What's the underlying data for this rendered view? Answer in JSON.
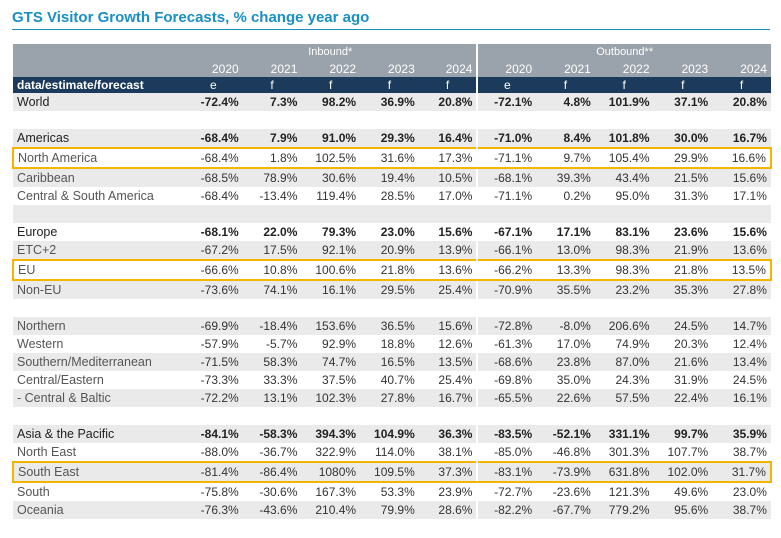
{
  "title": "GTS Visitor Growth Forecasts, % change year ago",
  "header": {
    "inbound": "Inbound*",
    "outbound": "Outbound**",
    "years": [
      "2020",
      "2021",
      "2022",
      "2023",
      "2024",
      "2020",
      "2021",
      "2022",
      "2023",
      "2024"
    ],
    "code_label": "data/estimate/forecast",
    "codes": [
      "e",
      "f",
      "f",
      "f",
      "f",
      "e",
      "f",
      "f",
      "f",
      "f"
    ]
  },
  "rows": [
    {
      "label": "World",
      "bold": true,
      "values": [
        "-72.4%",
        "7.3%",
        "98.2%",
        "36.9%",
        "20.8%",
        "-72.1%",
        "4.8%",
        "101.9%",
        "37.1%",
        "20.8%"
      ]
    },
    {
      "blank": true
    },
    {
      "label": "Americas",
      "bold": true,
      "values": [
        "-68.4%",
        "7.9%",
        "91.0%",
        "29.3%",
        "16.4%",
        "-71.0%",
        "8.4%",
        "101.8%",
        "30.0%",
        "16.7%"
      ]
    },
    {
      "label": "North America",
      "highlight": true,
      "values": [
        "-68.4%",
        "1.8%",
        "102.5%",
        "31.6%",
        "17.3%",
        "-71.1%",
        "9.7%",
        "105.4%",
        "29.9%",
        "16.6%"
      ]
    },
    {
      "label": "Caribbean",
      "values": [
        "-68.5%",
        "78.9%",
        "30.6%",
        "19.4%",
        "10.5%",
        "-68.1%",
        "39.3%",
        "43.4%",
        "21.5%",
        "15.6%"
      ]
    },
    {
      "label": "Central & South America",
      "values": [
        "-68.4%",
        "-13.4%",
        "119.4%",
        "28.5%",
        "17.0%",
        "-71.1%",
        "0.2%",
        "95.0%",
        "31.3%",
        "17.1%"
      ]
    },
    {
      "blank": true
    },
    {
      "label": "Europe",
      "bold": true,
      "values": [
        "-68.1%",
        "22.0%",
        "79.3%",
        "23.0%",
        "15.6%",
        "-67.1%",
        "17.1%",
        "83.1%",
        "23.6%",
        "15.6%"
      ]
    },
    {
      "label": "ETC+2",
      "values": [
        "-67.2%",
        "17.5%",
        "92.1%",
        "20.9%",
        "13.9%",
        "-66.1%",
        "13.0%",
        "98.3%",
        "21.9%",
        "13.6%"
      ]
    },
    {
      "label": "EU",
      "highlight": true,
      "values": [
        "-66.6%",
        "10.8%",
        "100.6%",
        "21.8%",
        "13.6%",
        "-66.2%",
        "13.3%",
        "98.3%",
        "21.8%",
        "13.5%"
      ]
    },
    {
      "label": "Non-EU",
      "values": [
        "-73.6%",
        "74.1%",
        "16.1%",
        "29.5%",
        "25.4%",
        "-70.9%",
        "35.5%",
        "23.2%",
        "35.3%",
        "27.8%"
      ]
    },
    {
      "blank": true
    },
    {
      "label": "Northern",
      "values": [
        "-69.9%",
        "-18.4%",
        "153.6%",
        "36.5%",
        "15.6%",
        "-72.8%",
        "-8.0%",
        "206.6%",
        "24.5%",
        "14.7%"
      ]
    },
    {
      "label": "Western",
      "values": [
        "-57.9%",
        "-5.7%",
        "92.9%",
        "18.8%",
        "12.6%",
        "-61.3%",
        "17.0%",
        "74.9%",
        "20.3%",
        "12.4%"
      ]
    },
    {
      "label": "Southern/Mediterranean",
      "values": [
        "-71.5%",
        "58.3%",
        "74.7%",
        "16.5%",
        "13.5%",
        "-68.6%",
        "23.8%",
        "87.0%",
        "21.6%",
        "13.4%"
      ]
    },
    {
      "label": "Central/Eastern",
      "values": [
        "-73.3%",
        "33.3%",
        "37.5%",
        "40.7%",
        "25.4%",
        "-69.8%",
        "35.0%",
        "24.3%",
        "31.9%",
        "24.5%"
      ]
    },
    {
      "label": " - Central & Baltic",
      "values": [
        "-72.2%",
        "13.1%",
        "102.3%",
        "27.8%",
        "16.7%",
        "-65.5%",
        "22.6%",
        "57.5%",
        "22.4%",
        "16.1%"
      ]
    },
    {
      "blank": true
    },
    {
      "label": "Asia & the Pacific",
      "bold": true,
      "values": [
        "-84.1%",
        "-58.3%",
        "394.3%",
        "104.9%",
        "36.3%",
        "-83.5%",
        "-52.1%",
        "331.1%",
        "99.7%",
        "35.9%"
      ]
    },
    {
      "label": "North East",
      "values": [
        "-88.0%",
        "-36.7%",
        "322.9%",
        "114.0%",
        "38.1%",
        "-85.0%",
        "-46.8%",
        "301.3%",
        "107.7%",
        "38.7%"
      ]
    },
    {
      "label": "South East",
      "highlight": true,
      "values": [
        "-81.4%",
        "-86.4%",
        "1080%",
        "109.5%",
        "37.3%",
        "-83.1%",
        "-73.9%",
        "631.8%",
        "102.0%",
        "31.7%"
      ]
    },
    {
      "label": "South",
      "values": [
        "-75.8%",
        "-30.6%",
        "167.3%",
        "53.3%",
        "23.9%",
        "-72.7%",
        "-23.6%",
        "121.3%",
        "49.6%",
        "23.0%"
      ]
    },
    {
      "label": "Oceania",
      "values": [
        "-76.3%",
        "-43.6%",
        "210.4%",
        "79.9%",
        "28.6%",
        "-82.2%",
        "-67.7%",
        "779.2%",
        "95.6%",
        "38.7%"
      ]
    }
  ],
  "colors": {
    "accent": "#1a8fc4",
    "header_grey": "#9aa2ab",
    "header_navy": "#1b3a5c",
    "highlight": "#f5b400"
  }
}
